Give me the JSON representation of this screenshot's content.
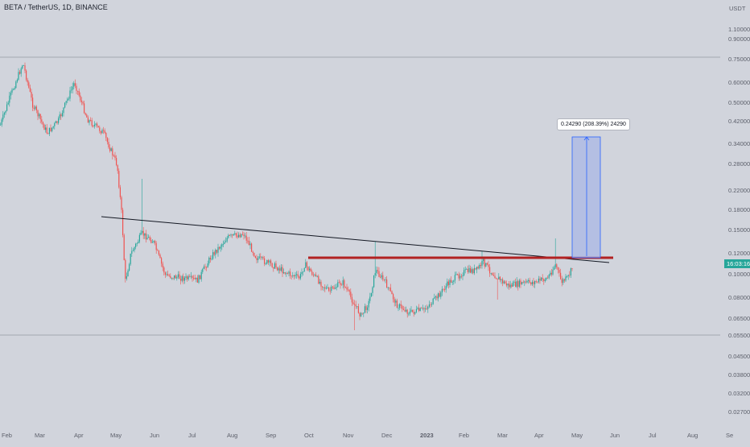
{
  "header": {
    "symbol_title": "BETA / TetherUS, 1D, BINANCE"
  },
  "price_axis": {
    "currency": "USDT",
    "labels": [
      "1.10000",
      "0.90000",
      "0.75000",
      "0.60000",
      "0.50000",
      "0.42000",
      "0.34000",
      "0.28000",
      "0.22000",
      "0.18000",
      "0.15000",
      "0.12000",
      "0.10000",
      "0.08000",
      "0.06500",
      "0.05500",
      "0.04500",
      "0.03800",
      "0.03200",
      "0.02700"
    ],
    "current_badge": "16:03:16"
  },
  "time_axis": {
    "labels": [
      "Feb",
      "Mar",
      "Apr",
      "May",
      "Jun",
      "Jul",
      "Aug",
      "Sep",
      "Oct",
      "Nov",
      "Dec",
      "2023",
      "Feb",
      "Mar",
      "Apr",
      "May",
      "Jun",
      "Jul",
      "Aug",
      "Se"
    ]
  },
  "measure": {
    "label": "0.24290 (208.39%) 24290"
  },
  "colors": {
    "background": "#d1d4dc",
    "up": "#26a69a",
    "down": "#ef5350",
    "resistance": "#b22222",
    "trendline": "#131722",
    "measure_fill": "#aab8e6",
    "measure_stroke": "#2962ff",
    "badge": "#26a69a"
  }
}
